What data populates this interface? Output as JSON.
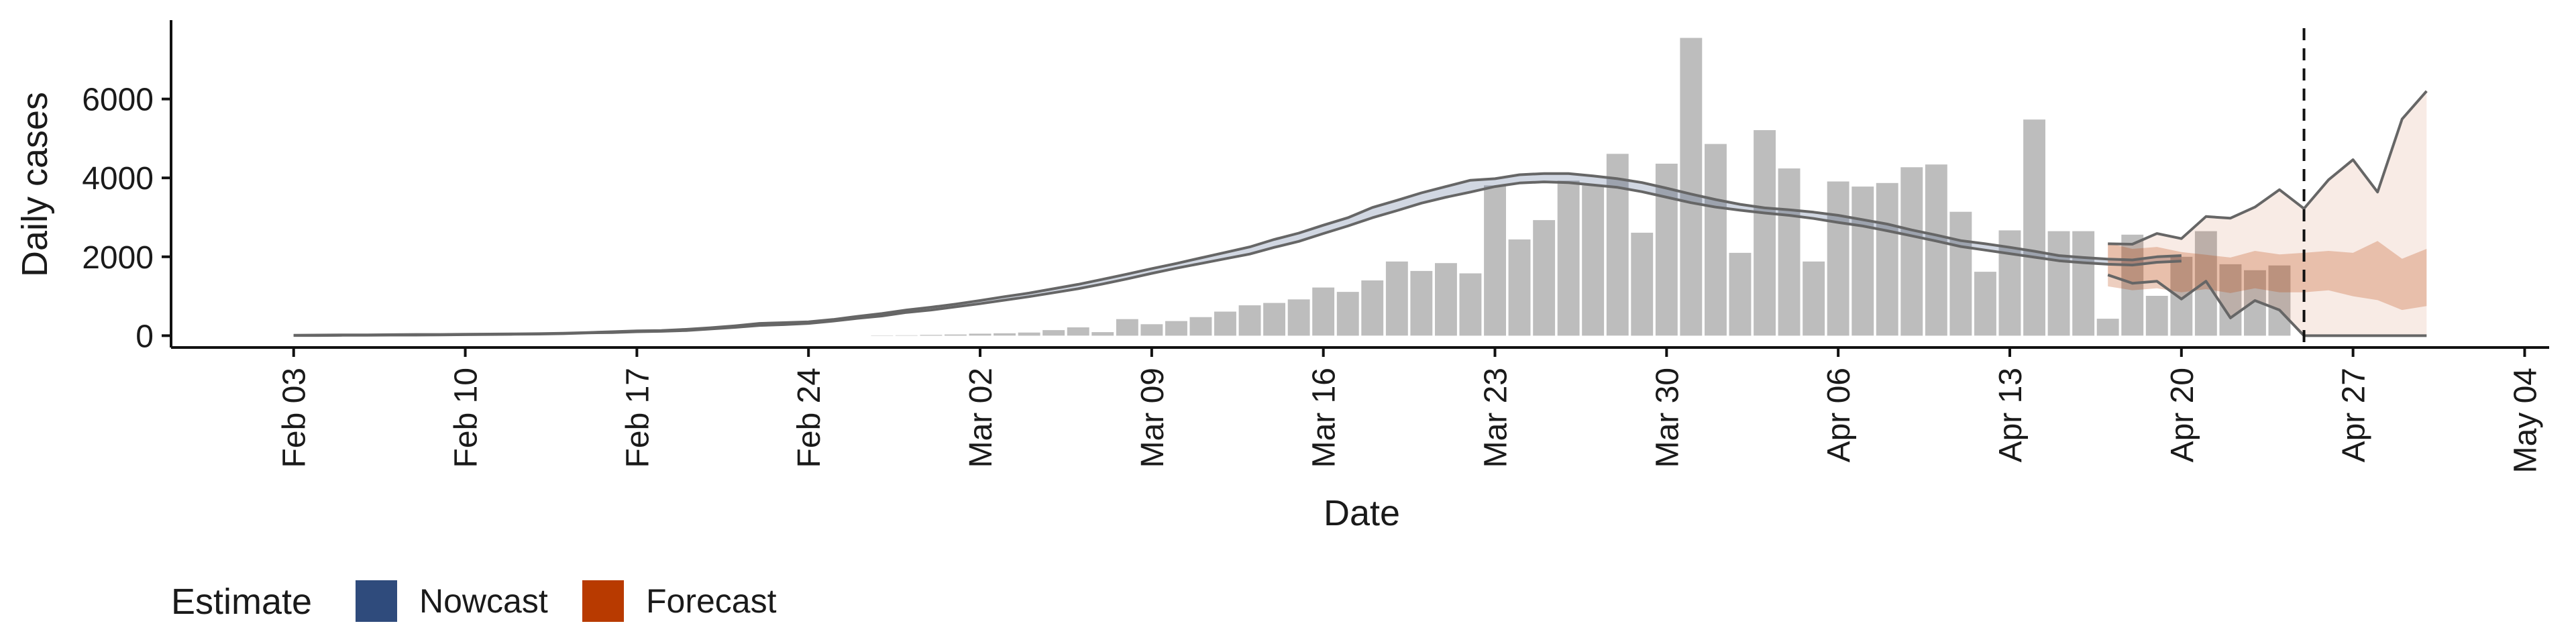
{
  "chart_data": {
    "type": "bar",
    "xlabel": "Date",
    "ylabel": "Daily cases",
    "y_ticks": [
      0,
      2000,
      4000,
      6000
    ],
    "ylim": [
      -300,
      8000
    ],
    "xlim": [
      "2020-01-29",
      "2020-05-05"
    ],
    "x_ticks": [
      {
        "date": "2020-02-03",
        "label": "Feb 03"
      },
      {
        "date": "2020-02-10",
        "label": "Feb 10"
      },
      {
        "date": "2020-02-17",
        "label": "Feb 17"
      },
      {
        "date": "2020-02-24",
        "label": "Feb 24"
      },
      {
        "date": "2020-03-02",
        "label": "Mar 02"
      },
      {
        "date": "2020-03-09",
        "label": "Mar 09"
      },
      {
        "date": "2020-03-16",
        "label": "Mar 16"
      },
      {
        "date": "2020-03-23",
        "label": "Mar 23"
      },
      {
        "date": "2020-03-30",
        "label": "Mar 30"
      },
      {
        "date": "2020-04-06",
        "label": "Apr 06"
      },
      {
        "date": "2020-04-13",
        "label": "Apr 13"
      },
      {
        "date": "2020-04-20",
        "label": "Apr 20"
      },
      {
        "date": "2020-04-27",
        "label": "Apr 27"
      },
      {
        "date": "2020-05-04",
        "label": "May 04"
      }
    ],
    "grid": false,
    "legend": {
      "title": "Estimate",
      "placement": "bottom-left",
      "items": [
        {
          "label": "Nowcast",
          "color": "#2f4b7c"
        },
        {
          "label": "Forecast",
          "color": "#b83a00"
        }
      ]
    },
    "vline_date": "2020-04-25",
    "colors": {
      "bars": "#bdbdbd",
      "lines": "#666666",
      "nowcast_band": "#2f4b7c",
      "forecast_band": "#b83a00"
    },
    "bars": {
      "start_date": "2020-02-27",
      "values": [
        5,
        10,
        20,
        30,
        50,
        60,
        80,
        140,
        210,
        90,
        420,
        290,
        370,
        470,
        610,
        770,
        830,
        920,
        1220,
        1110,
        1400,
        1880,
        1640,
        1840,
        1580,
        3810,
        2440,
        2930,
        3930,
        3810,
        4610,
        2610,
        4360,
        7550,
        4860,
        2100,
        5210,
        4240,
        1880,
        3910,
        3780,
        3870,
        4270,
        4340,
        3140,
        1620,
        2670,
        5480,
        2650,
        2650,
        430,
        2560,
        1010,
        2000,
        2650,
        1810,
        1660,
        1780
      ]
    },
    "nowcast_upper": {
      "start_date": "2020-02-03",
      "values": [
        10,
        15,
        20,
        20,
        25,
        30,
        30,
        35,
        40,
        45,
        50,
        60,
        80,
        100,
        120,
        130,
        160,
        200,
        250,
        310,
        330,
        350,
        410,
        490,
        560,
        650,
        720,
        800,
        890,
        990,
        1080,
        1190,
        1300,
        1430,
        1560,
        1700,
        1830,
        1970,
        2110,
        2250,
        2440,
        2600,
        2800,
        2990,
        3250,
        3430,
        3620,
        3780,
        3940,
        3980,
        4080,
        4110,
        4110,
        4050,
        3980,
        3880,
        3740,
        3590,
        3450,
        3330,
        3240,
        3190,
        3130,
        3050,
        2940,
        2830,
        2680,
        2550,
        2410,
        2330,
        2240,
        2140,
        2030,
        1980,
        1940,
        1920,
        2000,
        2030
      ]
    },
    "nowcast_lower": {
      "start_date": "2020-02-03",
      "values": [
        5,
        5,
        10,
        10,
        15,
        15,
        20,
        25,
        30,
        35,
        40,
        50,
        70,
        80,
        100,
        110,
        130,
        170,
        210,
        260,
        280,
        310,
        370,
        440,
        500,
        590,
        650,
        730,
        810,
        900,
        990,
        1090,
        1190,
        1310,
        1440,
        1580,
        1710,
        1830,
        1950,
        2070,
        2240,
        2390,
        2590,
        2780,
        2990,
        3170,
        3360,
        3510,
        3640,
        3780,
        3870,
        3900,
        3880,
        3820,
        3760,
        3650,
        3510,
        3370,
        3260,
        3180,
        3110,
        3050,
        2970,
        2870,
        2780,
        2660,
        2530,
        2400,
        2260,
        2170,
        2080,
        1990,
        1900,
        1850,
        1810,
        1790,
        1860,
        1890
      ]
    },
    "forecast_outer_upper": {
      "start_date": "2020-04-17",
      "values": [
        2330,
        2320,
        2590,
        2460,
        3020,
        2980,
        3260,
        3700,
        3220,
        3950,
        4460,
        3640,
        5490,
        6200
      ]
    },
    "forecast_outer_lower": {
      "start_date": "2020-04-17",
      "values": [
        1540,
        1330,
        1380,
        930,
        1380,
        450,
        890,
        650,
        0,
        0,
        0,
        0,
        0,
        0
      ]
    },
    "forecast_inner_upper": {
      "start_date": "2020-04-17",
      "values": [
        2350,
        2200,
        2250,
        2120,
        2050,
        1980,
        2150,
        2060,
        2100,
        2150,
        2100,
        2400,
        1950,
        2200
      ]
    },
    "forecast_inner_lower": {
      "start_date": "2020-04-17",
      "values": [
        1250,
        1150,
        1200,
        1100,
        1180,
        1080,
        1200,
        1100,
        1100,
        1150,
        1000,
        900,
        650,
        750
      ]
    }
  }
}
